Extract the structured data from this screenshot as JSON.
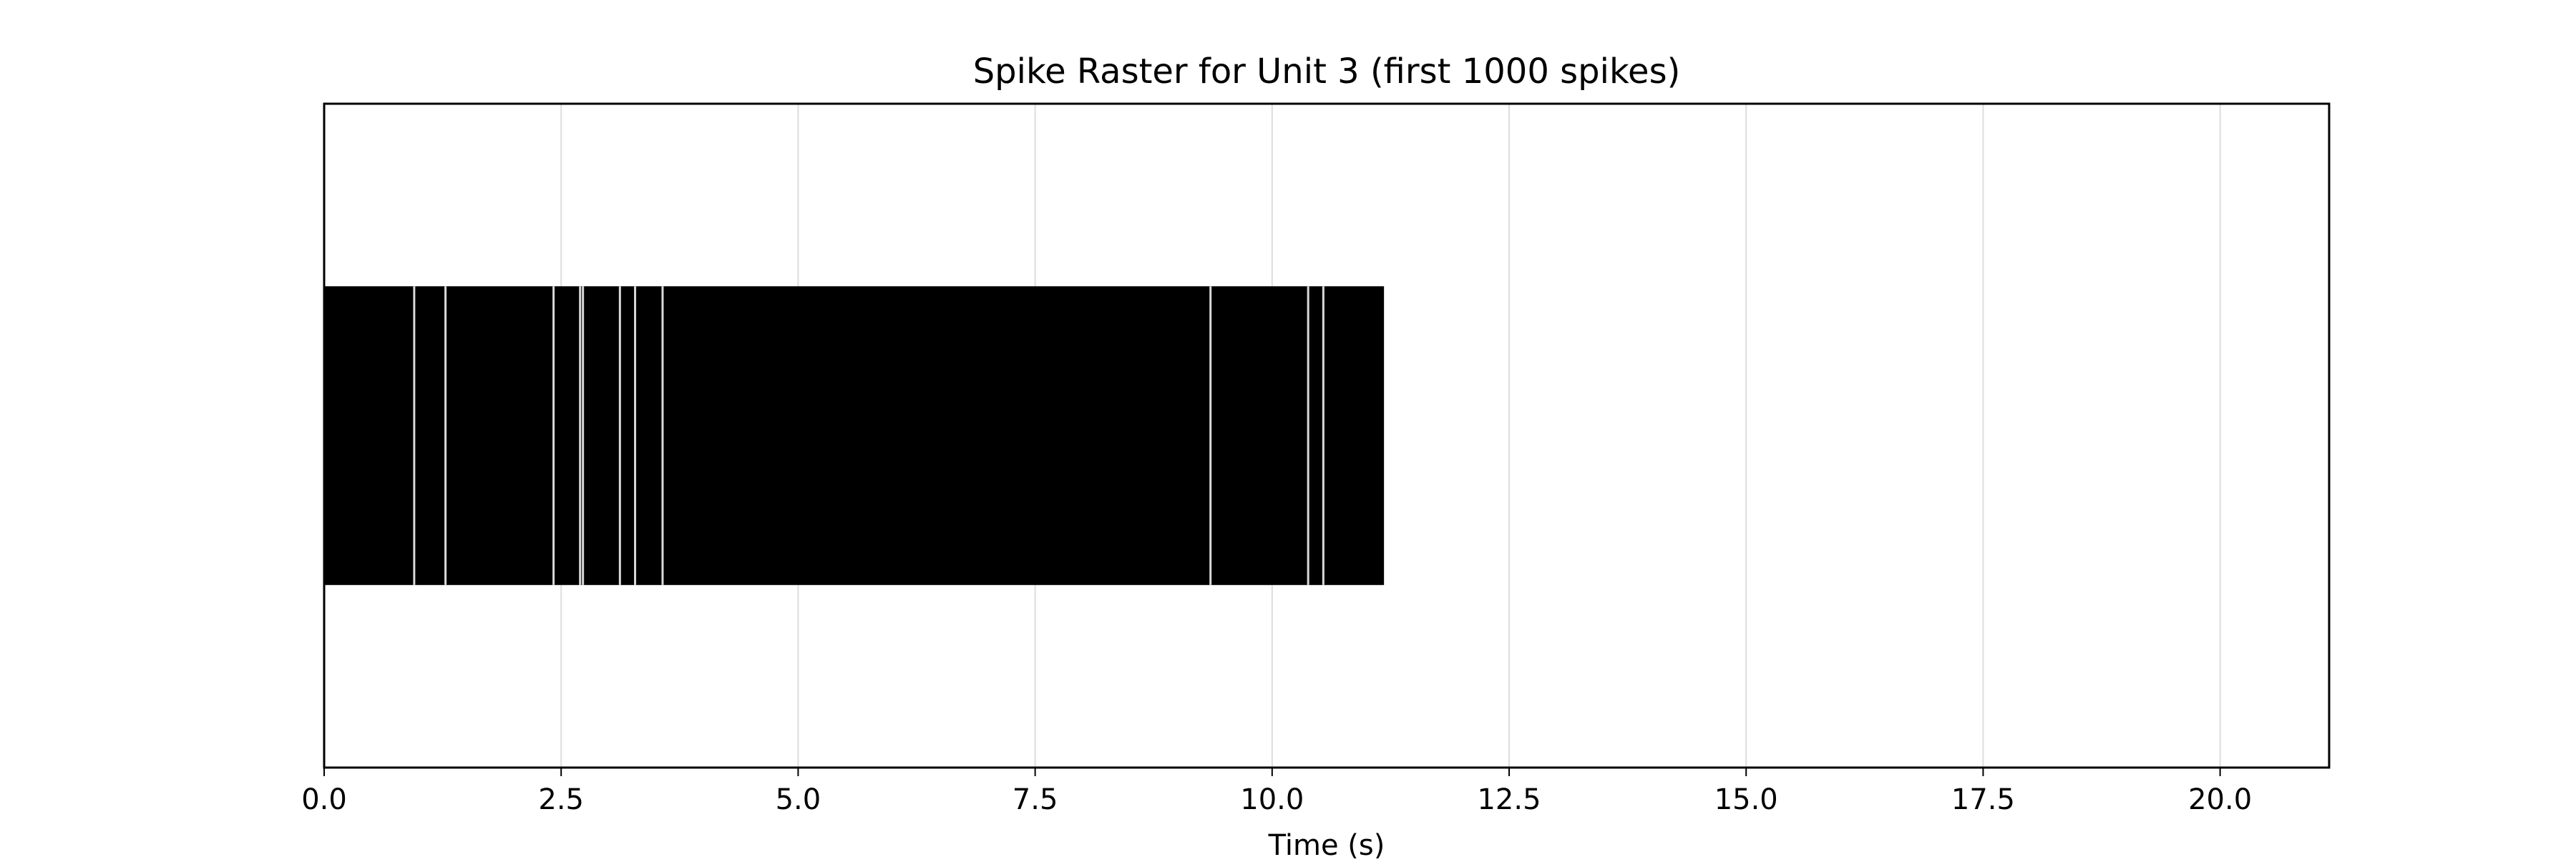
{
  "chart_data": {
    "type": "raster",
    "title": "Spike Raster for Unit 3 (first 1000 spikes)",
    "xlabel": "Time (s)",
    "ylabel": "",
    "xlim": [
      0,
      21.15
    ],
    "ylim": [
      0.0,
      2.0
    ],
    "x_ticks": [
      0.0,
      2.5,
      5.0,
      7.5,
      10.0,
      12.5,
      15.0,
      17.5,
      20.0
    ],
    "x_tick_labels": [
      "0.0",
      "2.5",
      "5.0",
      "7.5",
      "10.0",
      "12.5",
      "15.0",
      "17.5",
      "20.0"
    ],
    "y_ticks": [],
    "grid": "x-only",
    "line_offset": 1.0,
    "line_length": 0.9,
    "spike_range": [
      0.0,
      11.18
    ],
    "spike_count": 1000,
    "spike_color": "#000000",
    "gaps": [
      0.95,
      1.28,
      2.42,
      2.7,
      2.73,
      3.12,
      3.28,
      3.57,
      9.35,
      10.38,
      10.54
    ]
  }
}
